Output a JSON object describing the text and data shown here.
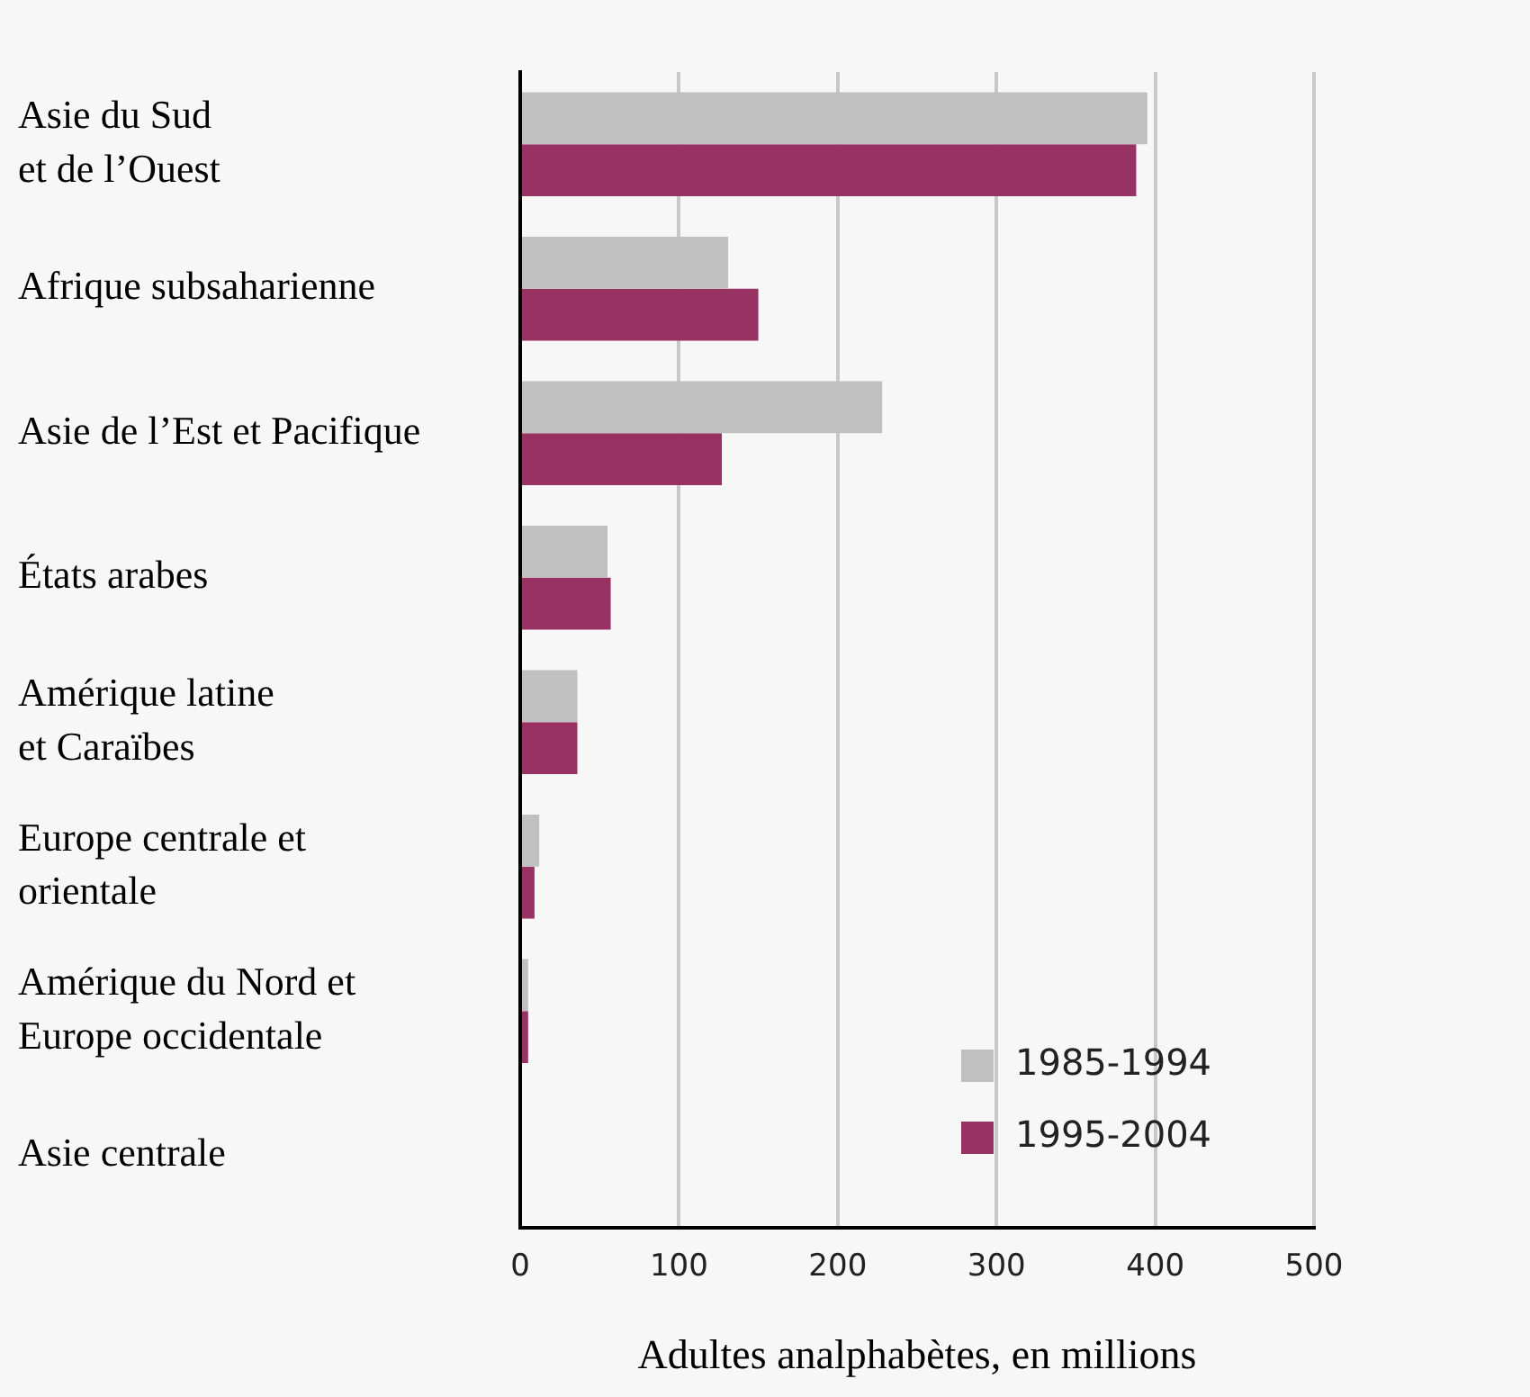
{
  "chart_data": {
    "type": "bar",
    "orientation": "horizontal",
    "xlabel": "Adultes analphabètes, en millions",
    "categories": [
      "Asie du Sud\net de l’Ouest",
      "Afrique subsaharienne",
      "Asie de l’Est et Pacifique",
      "États arabes",
      "Amérique latine\net Caraïbes",
      "Europe centrale et\norientale",
      "Amérique du Nord et\nEurope occidentale",
      "Asie centrale"
    ],
    "series": [
      {
        "name": "1985-1994",
        "color": "#c0c0c0",
        "values": [
          395,
          131,
          228,
          55,
          36,
          12,
          5,
          0
        ]
      },
      {
        "name": "1995-2004",
        "color": "#983263",
        "values": [
          388,
          150,
          127,
          57,
          36,
          9,
          5,
          0
        ]
      }
    ],
    "xlim": [
      0,
      500
    ],
    "xticks": [
      0,
      100,
      200,
      300,
      400,
      500
    ],
    "grid": "x",
    "legend": "bottom right"
  }
}
